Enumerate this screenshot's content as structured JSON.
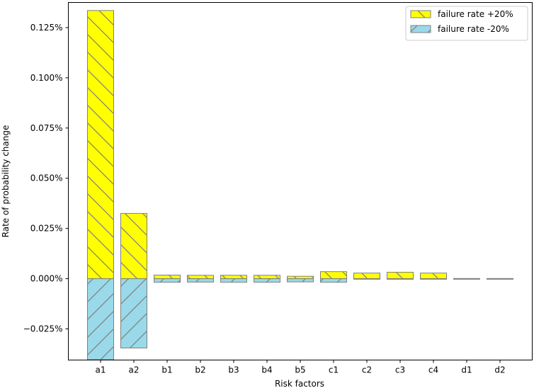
{
  "chart_data": {
    "type": "bar",
    "title": "",
    "xlabel": "Risk factors",
    "ylabel": "Rate of probability change",
    "categories": [
      "a1",
      "a2",
      "b1",
      "b2",
      "b3",
      "b4",
      "b5",
      "c1",
      "c2",
      "c3",
      "c4",
      "d1",
      "d2"
    ],
    "series": [
      {
        "name": "failure rate +20%",
        "color": "#ffff00",
        "hatch": "backslash",
        "values": [
          0.1335,
          0.0325,
          0.0018,
          0.0017,
          0.0017,
          0.0017,
          0.0012,
          0.0035,
          0.0028,
          0.0032,
          0.0028,
          0.0001,
          0.0001
        ]
      },
      {
        "name": "failure rate -20%",
        "color": "#99d9ea",
        "hatch": "slash",
        "values": [
          -0.0403,
          -0.0345,
          -0.0018,
          -0.0017,
          -0.0018,
          -0.0018,
          -0.0016,
          -0.0018,
          0.0,
          -0.0003,
          0.0,
          0.0,
          0.0
        ]
      }
    ],
    "ylim": [
      -0.0405,
      0.1375
    ],
    "yticks": [
      -0.025,
      0.0,
      0.025,
      0.05,
      0.075,
      0.1,
      0.125
    ],
    "ytick_labels": [
      "−0.025%",
      "0.000%",
      "0.025%",
      "0.050%",
      "0.075%",
      "0.100%",
      "0.125%"
    ],
    "grid": false,
    "legend_position": "top-right",
    "edge_color": "#808080"
  }
}
